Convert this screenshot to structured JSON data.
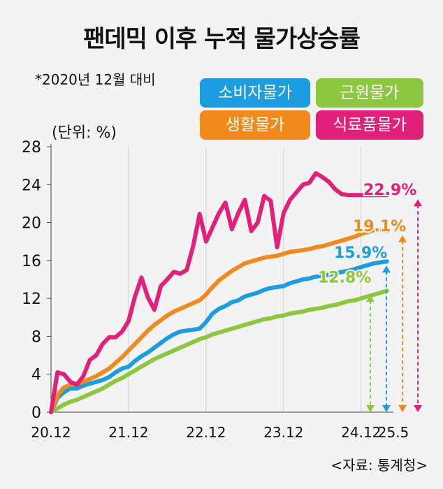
{
  "header": {
    "title": "팬데믹 이후 누적 물가상승률",
    "subtitle": "*2020년 12월 대비",
    "unit": "(단위: %)",
    "source": "<자료: 통계청>"
  },
  "colors": {
    "consumer": "#1e9ce0",
    "core": "#8dc63f",
    "living": "#f18a1c",
    "food": "#e1207a"
  },
  "chart_data": {
    "type": "line",
    "title": "팬데믹 이후 누적 물가상승률",
    "subtitle": "*2020년 12월 대비",
    "ylabel": "(단위: %)",
    "ylim": [
      0,
      28
    ],
    "yticks": [
      "0",
      "4",
      "8",
      "12",
      "16",
      "20",
      "24",
      "28"
    ],
    "xlim": [
      0,
      53
    ],
    "xticks": [
      {
        "label": "20.12",
        "x": 0
      },
      {
        "label": "21.12",
        "x": 12
      },
      {
        "label": "22.12",
        "x": 24
      },
      {
        "label": "23.12",
        "x": 36
      },
      {
        "label": "24.12",
        "x": 48
      },
      {
        "label": "25.5",
        "x": 53
      }
    ],
    "grid": "vertical",
    "legend_position": "top-right",
    "series": [
      {
        "name": "소비자물가",
        "color_key": "consumer",
        "final_label": "15.9%",
        "values": [
          0,
          1.5,
          2.1,
          2.5,
          2.5,
          2.8,
          3.0,
          3.2,
          3.4,
          3.7,
          4.2,
          4.6,
          4.8,
          5.4,
          5.9,
          6.3,
          6.8,
          7.3,
          7.8,
          8.2,
          8.5,
          8.6,
          8.7,
          8.8,
          9.5,
          10.4,
          10.9,
          11.2,
          11.6,
          11.8,
          12.2,
          12.4,
          12.6,
          12.9,
          13.1,
          13.2,
          13.3,
          13.6,
          13.8,
          14.0,
          14.1,
          14.3,
          14.4,
          14.5,
          14.6,
          14.8,
          14.9,
          15.1,
          15.3,
          15.5,
          15.7,
          15.8,
          15.9
        ]
      },
      {
        "name": "근원물가",
        "color_key": "core",
        "final_label": "12.8%",
        "values": [
          0,
          0.4,
          0.8,
          1.1,
          1.3,
          1.6,
          1.9,
          2.2,
          2.5,
          2.9,
          3.3,
          3.6,
          4.0,
          4.4,
          4.8,
          5.2,
          5.6,
          5.9,
          6.2,
          6.5,
          6.8,
          7.1,
          7.4,
          7.7,
          7.9,
          8.2,
          8.4,
          8.6,
          8.8,
          9.0,
          9.2,
          9.4,
          9.6,
          9.8,
          9.9,
          10.1,
          10.2,
          10.4,
          10.5,
          10.6,
          10.8,
          10.9,
          11.0,
          11.2,
          11.3,
          11.5,
          11.7,
          11.8,
          12.0,
          12.2,
          12.4,
          12.6,
          12.8
        ]
      },
      {
        "name": "생활물가",
        "color_key": "living",
        "final_label": "19.1%",
        "values": [
          0,
          1.8,
          2.6,
          2.9,
          3.0,
          3.2,
          3.5,
          3.8,
          4.2,
          4.6,
          5.2,
          5.8,
          6.5,
          7.2,
          7.9,
          8.6,
          9.2,
          9.7,
          10.2,
          10.6,
          10.9,
          11.2,
          11.5,
          11.8,
          12.4,
          13.2,
          13.9,
          14.4,
          14.9,
          15.3,
          15.7,
          15.9,
          16.1,
          16.3,
          16.4,
          16.5,
          16.7,
          16.9,
          17.0,
          17.1,
          17.2,
          17.4,
          17.5,
          17.7,
          17.9,
          18.1,
          18.3,
          18.5,
          18.8,
          19.0,
          19.2,
          19.2,
          19.1
        ]
      },
      {
        "name": "식료품물가",
        "color_key": "food",
        "final_label": "22.9%",
        "values": [
          0,
          4.2,
          4.0,
          3.2,
          2.9,
          3.8,
          5.5,
          6.0,
          7.2,
          7.9,
          7.9,
          8.5,
          9.6,
          12.2,
          14.2,
          12.1,
          10.8,
          13.3,
          14.0,
          14.8,
          14.6,
          15.0,
          17.5,
          20.9,
          18.0,
          19.5,
          21.0,
          22.1,
          19.3,
          21.0,
          22.4,
          19.1,
          20.0,
          22.8,
          22.3,
          17.4,
          21.0,
          22.4,
          23.2,
          24.0,
          24.2,
          25.2,
          24.8,
          24.3,
          23.5,
          23.0,
          22.9,
          22.9,
          22.9,
          22.9,
          22.9,
          22.9,
          22.9
        ]
      }
    ]
  }
}
